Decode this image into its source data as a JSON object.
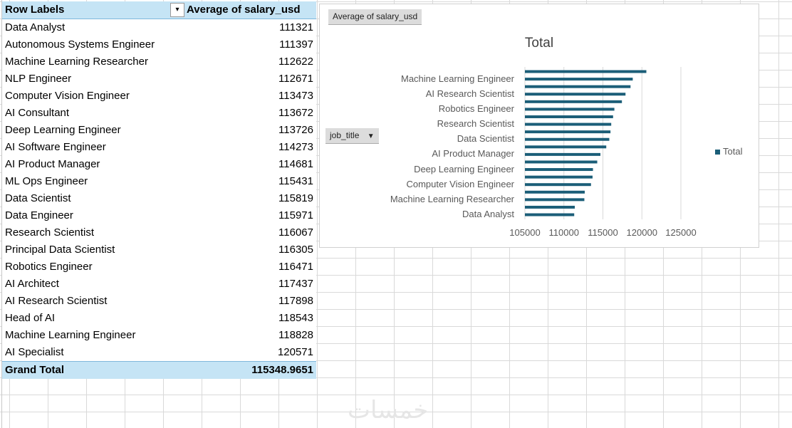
{
  "pivot": {
    "header": {
      "row_labels": "Row Labels",
      "value_header": "Average of salary_usd",
      "filter_icon": "sort-filter-icon"
    },
    "rows": [
      {
        "label": "Data Analyst",
        "value": "111321"
      },
      {
        "label": "Autonomous Systems Engineer",
        "value": "111397"
      },
      {
        "label": "Machine Learning Researcher",
        "value": "112622"
      },
      {
        "label": "NLP Engineer",
        "value": "112671"
      },
      {
        "label": "Computer Vision Engineer",
        "value": "113473"
      },
      {
        "label": "AI Consultant",
        "value": "113672"
      },
      {
        "label": "Deep Learning Engineer",
        "value": "113726"
      },
      {
        "label": "AI Software Engineer",
        "value": "114273"
      },
      {
        "label": "AI Product Manager",
        "value": "114681"
      },
      {
        "label": "ML Ops Engineer",
        "value": "115431"
      },
      {
        "label": "Data Scientist",
        "value": "115819"
      },
      {
        "label": "Data Engineer",
        "value": "115971"
      },
      {
        "label": "Research Scientist",
        "value": "116067"
      },
      {
        "label": "Principal Data Scientist",
        "value": "116305"
      },
      {
        "label": "Robotics Engineer",
        "value": "116471"
      },
      {
        "label": "AI Architect",
        "value": "117437"
      },
      {
        "label": "AI Research Scientist",
        "value": "117898"
      },
      {
        "label": "Head of AI",
        "value": "118543"
      },
      {
        "label": "Machine Learning Engineer",
        "value": "118828"
      },
      {
        "label": "AI Specialist",
        "value": "120571"
      }
    ],
    "grand_total": {
      "label": "Grand Total",
      "value": "115348.9651"
    }
  },
  "chart": {
    "value_field_button": "Average of salary_usd",
    "axis_field_button": "job_title",
    "legend_label": "Total",
    "bar_color": "#1b5e78"
  },
  "chart_data": {
    "type": "bar",
    "orientation": "horizontal",
    "title": "Total",
    "categories": [
      "Data Analyst",
      "Autonomous Systems Engineer",
      "Machine Learning Researcher",
      "NLP Engineer",
      "Computer Vision Engineer",
      "AI Consultant",
      "Deep Learning Engineer",
      "AI Software Engineer",
      "AI Product Manager",
      "ML Ops Engineer",
      "Data Scientist",
      "Data Engineer",
      "Research Scientist",
      "Principal Data Scientist",
      "Robotics Engineer",
      "AI Architect",
      "AI Research Scientist",
      "Head of AI",
      "Machine Learning Engineer",
      "AI Specialist"
    ],
    "visible_category_labels": [
      "Data Analyst",
      "Machine Learning Researcher",
      "Computer Vision Engineer",
      "Deep Learning Engineer",
      "AI Product Manager",
      "Data Scientist",
      "Research Scientist",
      "Robotics Engineer",
      "AI Research Scientist",
      "Machine Learning Engineer"
    ],
    "series": [
      {
        "name": "Total",
        "values": [
          111321,
          111397,
          112622,
          112671,
          113473,
          113672,
          113726,
          114273,
          114681,
          115431,
          115819,
          115971,
          116067,
          116305,
          116471,
          117437,
          117898,
          118543,
          118828,
          120571
        ]
      }
    ],
    "xlim": [
      105000,
      125000
    ],
    "xticks": [
      "105000",
      "110000",
      "115000",
      "120000",
      "125000"
    ],
    "legend": "right"
  }
}
